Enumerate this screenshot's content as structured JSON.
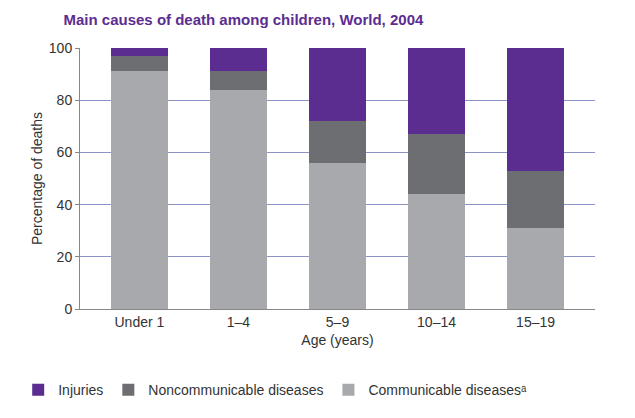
{
  "chart_data": {
    "type": "bar",
    "title": "Main causes of death among children, World, 2004",
    "x_label": "Age (years)",
    "y_label": "Percentage of deaths",
    "categories": [
      "Under 1",
      "1–4",
      "5–9",
      "10–14",
      "15–19"
    ],
    "series": [
      {
        "name": "Injuries",
        "color": "#5c2d91",
        "values": [
          3,
          9,
          28,
          33,
          47
        ]
      },
      {
        "name": "Noncommunicable diseases",
        "color": "#6d6e71",
        "values": [
          6,
          7,
          16,
          23,
          22
        ]
      },
      {
        "name": "Communicable diseasesᵃ",
        "color": "#a7a9ac",
        "values": [
          91,
          84,
          56,
          44,
          31
        ]
      }
    ],
    "stacked": true,
    "ylim": [
      0,
      100
    ],
    "yticks": [
      0,
      20,
      40,
      60,
      80,
      100
    ],
    "grid": true,
    "legend": "bottom"
  }
}
